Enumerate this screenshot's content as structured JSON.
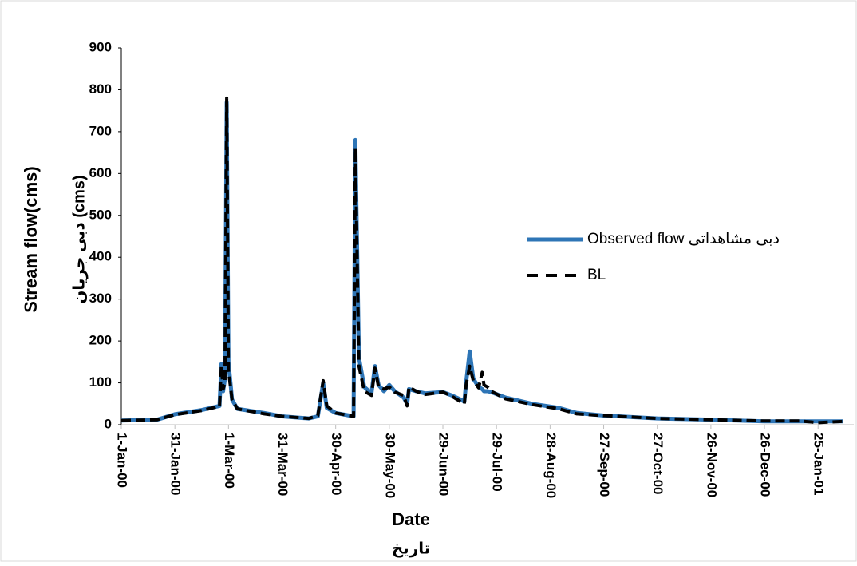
{
  "chart_data": {
    "type": "line",
    "y_title": "Stream flow(cms)",
    "y_title_2": "دبی جریان (cms)",
    "x_title": "Date",
    "x_title_2": "تاریخ",
    "x": [
      "1-Jan-00",
      "21-Jan-00",
      "31-Jan-00",
      "15-Feb-00",
      "25-Feb-00",
      "26-Feb-00",
      "27-Feb-00",
      "28-Feb-00",
      "29-Feb-00",
      "1-Mar-00",
      "3-Mar-00",
      "6-Mar-00",
      "21-Mar-00",
      "31-Mar-00",
      "15-Apr-00",
      "20-Apr-00",
      "23-Apr-00",
      "25-Apr-00",
      "30-Apr-00",
      "10-May-00",
      "11-May-00",
      "13-May-00",
      "16-May-00",
      "20-May-00",
      "22-May-00",
      "24-May-00",
      "27-May-00",
      "30-May-00",
      "2-Jun-00",
      "7-Jun-00",
      "9-Jun-00",
      "10-Jun-00",
      "14-Jun-00",
      "19-Jun-00",
      "29-Jun-00",
      "4-Jul-00",
      "9-Jul-00",
      "11-Jul-00",
      "12-Jul-00",
      "14-Jul-00",
      "16-Jul-00",
      "19-Jul-00",
      "21-Jul-00",
      "22-Jul-00",
      "24-Jul-00",
      "26-Jul-00",
      "3-Aug-00",
      "18-Aug-00",
      "2-Sep-00",
      "12-Sep-00",
      "27-Sep-00",
      "27-Oct-00",
      "26-Nov-00",
      "26-Dec-00",
      "15-Jan-01",
      "25-Jan-01",
      "8-Feb-01"
    ],
    "series": [
      {
        "name": "Observed flow دبی مشاهداتی",
        "color": "#2e75b6",
        "dash": false,
        "values": [
          10,
          12,
          25,
          35,
          45,
          145,
          80,
          110,
          770,
          150,
          60,
          38,
          28,
          20,
          15,
          20,
          100,
          40,
          28,
          20,
          680,
          160,
          90,
          75,
          140,
          95,
          80,
          95,
          80,
          65,
          50,
          85,
          80,
          75,
          78,
          70,
          60,
          55,
          100,
          175,
          110,
          90,
          85,
          80,
          80,
          78,
          65,
          50,
          40,
          28,
          22,
          15,
          12,
          8,
          8,
          8,
          8
        ]
      },
      {
        "name": "BL",
        "color": "#000000",
        "dash": true,
        "values": [
          10,
          12,
          24,
          34,
          44,
          140,
          85,
          100,
          780,
          130,
          60,
          38,
          26,
          20,
          15,
          22,
          105,
          45,
          28,
          20,
          660,
          140,
          80,
          70,
          135,
          90,
          85,
          90,
          78,
          70,
          45,
          90,
          80,
          72,
          78,
          68,
          55,
          50,
          95,
          140,
          105,
          88,
          125,
          95,
          90,
          80,
          62,
          48,
          38,
          26,
          22,
          15,
          12,
          9,
          9,
          5,
          8
        ]
      }
    ],
    "xlim": [
      "1-Jan-00",
      "14-Feb-01"
    ],
    "xticks": [
      "1-Jan-00",
      "31-Jan-00",
      "1-Mar-00",
      "31-Mar-00",
      "30-Apr-00",
      "30-May-00",
      "29-Jun-00",
      "29-Jul-00",
      "28-Aug-00",
      "27-Sep-00",
      "27-Oct-00",
      "26-Nov-00",
      "26-Dec-00",
      "25-Jan-01"
    ],
    "ylim": [
      0,
      900
    ],
    "yticks": [
      0,
      100,
      200,
      300,
      400,
      500,
      600,
      700,
      800,
      900
    ],
    "grid": false,
    "legend": "right"
  }
}
